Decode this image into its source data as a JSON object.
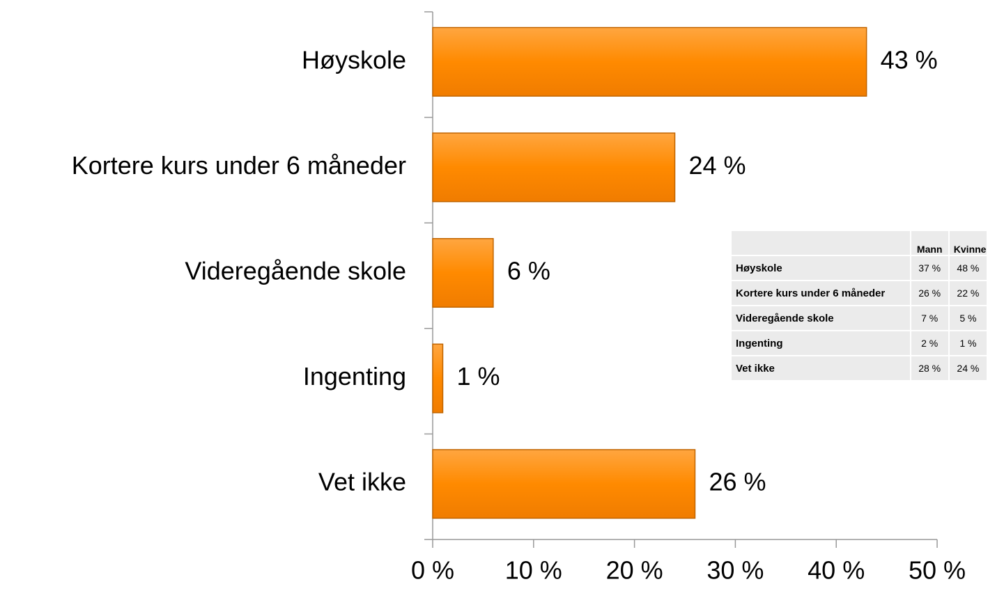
{
  "chart_data": {
    "type": "bar",
    "orientation": "horizontal",
    "categories": [
      "Høyskole",
      "Kortere kurs under 6 måneder",
      "Videregående skole",
      "Ingenting",
      "Vet ikke"
    ],
    "values": [
      43,
      24,
      6,
      1,
      26
    ],
    "value_labels": [
      "43 %",
      "24 %",
      "6 %",
      "1 %",
      "26 %"
    ],
    "color": "#ff8a00",
    "xlim": [
      0,
      50
    ],
    "xticks": [
      {
        "value": 0,
        "label": "0 %"
      },
      {
        "value": 10,
        "label": "10 %"
      },
      {
        "value": 20,
        "label": "20 %"
      },
      {
        "value": 30,
        "label": "30 %"
      },
      {
        "value": 40,
        "label": "40 %"
      },
      {
        "value": 50,
        "label": "50 %"
      }
    ],
    "grid": false
  },
  "table": {
    "header": [
      "Mann",
      "Kvinne"
    ],
    "rows": [
      [
        "Høyskole",
        "37 %",
        "48 %"
      ],
      [
        "Kortere kurs under 6 måneder",
        "26 %",
        "22 %"
      ],
      [
        "Videregående skole",
        "7 %",
        "5 %"
      ],
      [
        "Ingenting",
        "2 %",
        "1 %"
      ],
      [
        "Vet ikke",
        "28 %",
        "24 %"
      ]
    ]
  }
}
